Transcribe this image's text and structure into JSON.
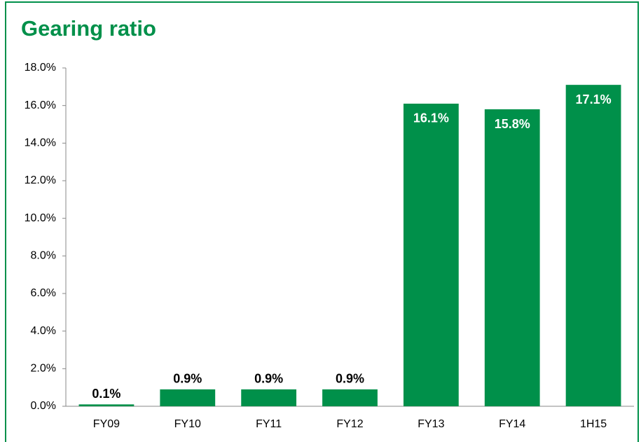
{
  "chart_data": {
    "type": "bar",
    "title": "Gearing ratio",
    "categories": [
      "FY09",
      "FY10",
      "FY11",
      "FY12",
      "FY13",
      "FY14",
      "1H15"
    ],
    "values": [
      0.1,
      0.9,
      0.9,
      0.9,
      16.1,
      15.8,
      17.1
    ],
    "value_labels": [
      "0.1%",
      "0.9%",
      "0.9%",
      "0.9%",
      "16.1%",
      "15.8%",
      "17.1%"
    ],
    "color": "#00904a",
    "ylim": [
      0,
      18
    ],
    "yticks": [
      {
        "value": 0,
        "label": "0.0%"
      },
      {
        "value": 2,
        "label": "2.0%"
      },
      {
        "value": 4,
        "label": "4.0%"
      },
      {
        "value": 6,
        "label": "6.0%"
      },
      {
        "value": 8,
        "label": "8.0%"
      },
      {
        "value": 10,
        "label": "10.0%"
      },
      {
        "value": 12,
        "label": "12.0%"
      },
      {
        "value": 14,
        "label": "14.0%"
      },
      {
        "value": 16,
        "label": "16.0%"
      },
      {
        "value": 18,
        "label": "18.0%"
      }
    ],
    "grid": false
  }
}
